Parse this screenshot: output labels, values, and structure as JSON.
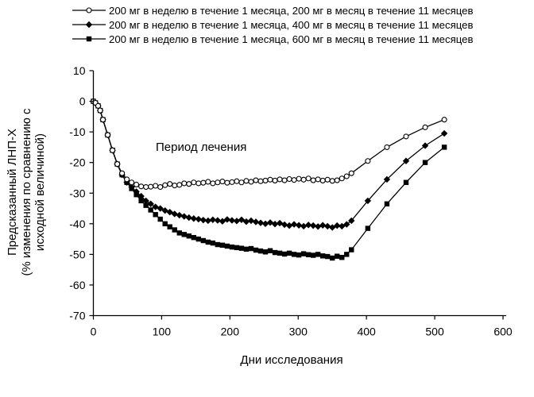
{
  "chart_data": {
    "type": "line",
    "xlabel": "Дни исследования",
    "ylabel_lines": [
      "Предсказанный ЛНП-Х",
      "(% изменения по сравнению с",
      "исходной величиной)"
    ],
    "annotation": "Период лечения",
    "xlim": [
      0,
      600
    ],
    "ylim": [
      -70,
      10
    ],
    "x_ticks": [
      0,
      100,
      200,
      300,
      400,
      500,
      600
    ],
    "y_ticks": [
      10,
      0,
      -10,
      -20,
      -30,
      -40,
      -50,
      -60,
      -70
    ],
    "grid": false,
    "legend_position": "top",
    "series": [
      {
        "name": "200 мг в неделю в течение 1 месяца, 200 мг в месяц в течение 11 месяцев",
        "marker": "open-circle",
        "x": [
          0,
          3,
          7,
          10,
          14,
          21,
          28,
          35,
          42,
          49,
          56,
          63,
          70,
          77,
          84,
          91,
          98,
          105,
          112,
          119,
          126,
          133,
          140,
          147,
          154,
          161,
          168,
          175,
          182,
          189,
          196,
          203,
          210,
          217,
          224,
          231,
          238,
          245,
          252,
          259,
          266,
          273,
          280,
          287,
          294,
          301,
          308,
          315,
          322,
          329,
          336,
          343,
          350,
          357,
          364,
          371,
          378,
          402,
          430,
          458,
          486,
          514
        ],
        "values": [
          0,
          -0.5,
          -1.5,
          -3,
          -6,
          -11,
          -16,
          -20.5,
          -23.5,
          -25.5,
          -26.5,
          -27.2,
          -27.8,
          -28,
          -27.9,
          -27.6,
          -28,
          -27.4,
          -27,
          -27.5,
          -27.3,
          -26.8,
          -27,
          -26.5,
          -26.8,
          -26.6,
          -26.3,
          -26.8,
          -26.5,
          -26.2,
          -26.6,
          -26.4,
          -26.1,
          -26.5,
          -26,
          -26.3,
          -25.8,
          -26.1,
          -25.9,
          -25.6,
          -25.9,
          -25.5,
          -25.8,
          -25.4,
          -25.7,
          -25.3,
          -25.6,
          -25.2,
          -25.8,
          -25.5,
          -25.9,
          -25.6,
          -26,
          -25.8,
          -25.2,
          -24.5,
          -23.5,
          -19.5,
          -15,
          -11.5,
          -8.5,
          -6
        ]
      },
      {
        "name": "200 мг в неделю в течение 1 месяца, 400 мг в месяц в течение 11 месяцев",
        "marker": "filled-diamond",
        "x": [
          0,
          3,
          7,
          10,
          14,
          21,
          28,
          35,
          42,
          49,
          56,
          63,
          70,
          77,
          84,
          91,
          98,
          105,
          112,
          119,
          126,
          133,
          140,
          147,
          154,
          161,
          168,
          175,
          182,
          189,
          196,
          203,
          210,
          217,
          224,
          231,
          238,
          245,
          252,
          259,
          266,
          273,
          280,
          287,
          294,
          301,
          308,
          315,
          322,
          329,
          336,
          343,
          350,
          357,
          364,
          371,
          378,
          402,
          430,
          458,
          486,
          514
        ],
        "values": [
          0,
          -0.5,
          -1.5,
          -3,
          -6,
          -11,
          -16,
          -20.5,
          -24,
          -26.5,
          -28,
          -29.5,
          -31,
          -32.5,
          -33.5,
          -34.5,
          -35,
          -35.7,
          -36.2,
          -36.8,
          -37.2,
          -37.6,
          -38,
          -38.3,
          -38.5,
          -38.8,
          -39,
          -38.7,
          -38.9,
          -39.2,
          -38.6,
          -38.9,
          -39.1,
          -38.7,
          -39.3,
          -39,
          -39.4,
          -39.7,
          -40,
          -39.6,
          -40.1,
          -39.8,
          -40.3,
          -40.6,
          -40.2,
          -40.5,
          -40.8,
          -40.4,
          -40.6,
          -40.9,
          -40.5,
          -40.8,
          -41.2,
          -40.6,
          -40.8,
          -40.2,
          -39,
          -32.5,
          -25.5,
          -19.5,
          -14.5,
          -10.5
        ]
      },
      {
        "name": "200 мг в неделю в течение 1 месяца, 600 мг в месяц в течение 11 месяцев",
        "marker": "filled-square",
        "x": [
          0,
          3,
          7,
          10,
          14,
          21,
          28,
          35,
          42,
          49,
          56,
          63,
          70,
          77,
          84,
          91,
          98,
          105,
          112,
          119,
          126,
          133,
          140,
          147,
          154,
          161,
          168,
          175,
          182,
          189,
          196,
          203,
          210,
          217,
          224,
          231,
          238,
          245,
          252,
          259,
          266,
          273,
          280,
          287,
          294,
          301,
          308,
          315,
          322,
          329,
          336,
          343,
          350,
          357,
          364,
          371,
          378,
          402,
          430,
          458,
          486,
          514
        ],
        "values": [
          0,
          -0.5,
          -1.5,
          -3,
          -6,
          -11,
          -16,
          -20.5,
          -24,
          -26.5,
          -28.5,
          -30.5,
          -32.5,
          -34,
          -35.5,
          -37,
          -38.5,
          -40,
          -41,
          -42,
          -43,
          -43.5,
          -44,
          -44.5,
          -45,
          -45.5,
          -46,
          -46.3,
          -46.8,
          -47,
          -47.3,
          -47.6,
          -47.8,
          -48,
          -48.3,
          -48.1,
          -48.6,
          -48.9,
          -49.2,
          -48.8,
          -49.4,
          -49.6,
          -49.9,
          -49.6,
          -50,
          -50.2,
          -49.8,
          -50.1,
          -50.3,
          -50,
          -50.5,
          -50.7,
          -51.2,
          -50.6,
          -51,
          -50,
          -48.5,
          -41.5,
          -33.5,
          -26.5,
          -20,
          -15
        ]
      }
    ]
  }
}
